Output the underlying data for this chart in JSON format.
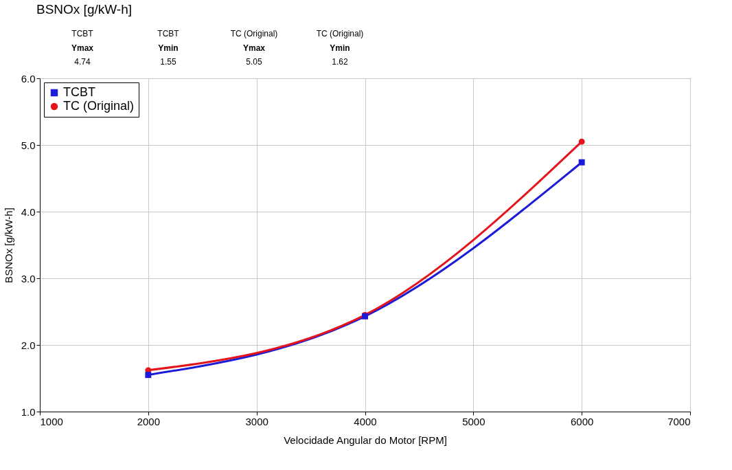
{
  "chart_data": {
    "type": "line",
    "title": "BSNOx [g/kW-h]",
    "xlabel": "Velocidade Angular do Motor [RPM]",
    "ylabel": "BSNOx [g/kW-h]",
    "annotations": [
      "TCBT",
      "Ymax",
      "4.74",
      "TCBT",
      "Ymin",
      "1.55",
      "TC (Original)",
      "Ymax",
      "5.05",
      "TC (Original)",
      "Ymin",
      "1.62"
    ],
    "x": [
      2000,
      4000,
      6000
    ],
    "series": [
      {
        "name": "TCBT",
        "color": "#1c1cd8",
        "marker": "square",
        "values": [
          1.55,
          2.43,
          4.74
        ]
      },
      {
        "name": "TC (Original)",
        "color": "#e3141c",
        "marker": "circle",
        "values": [
          1.62,
          2.45,
          5.05
        ]
      }
    ],
    "xlim": [
      1000,
      7000
    ],
    "xticks": [
      1000,
      2000,
      3000,
      4000,
      5000,
      6000,
      7000
    ],
    "ylim": [
      1.0,
      6.0
    ],
    "yticks": [
      {
        "value": 1,
        "label": "1.0"
      },
      {
        "value": 2,
        "label": "2.0"
      },
      {
        "value": 3,
        "label": "3.0"
      },
      {
        "value": 4,
        "label": "4.0"
      },
      {
        "value": 5,
        "label": "5.0"
      },
      {
        "value": 6,
        "label": "6.0"
      }
    ],
    "grid": true,
    "legend": "top left",
    "line_style": "solid"
  }
}
